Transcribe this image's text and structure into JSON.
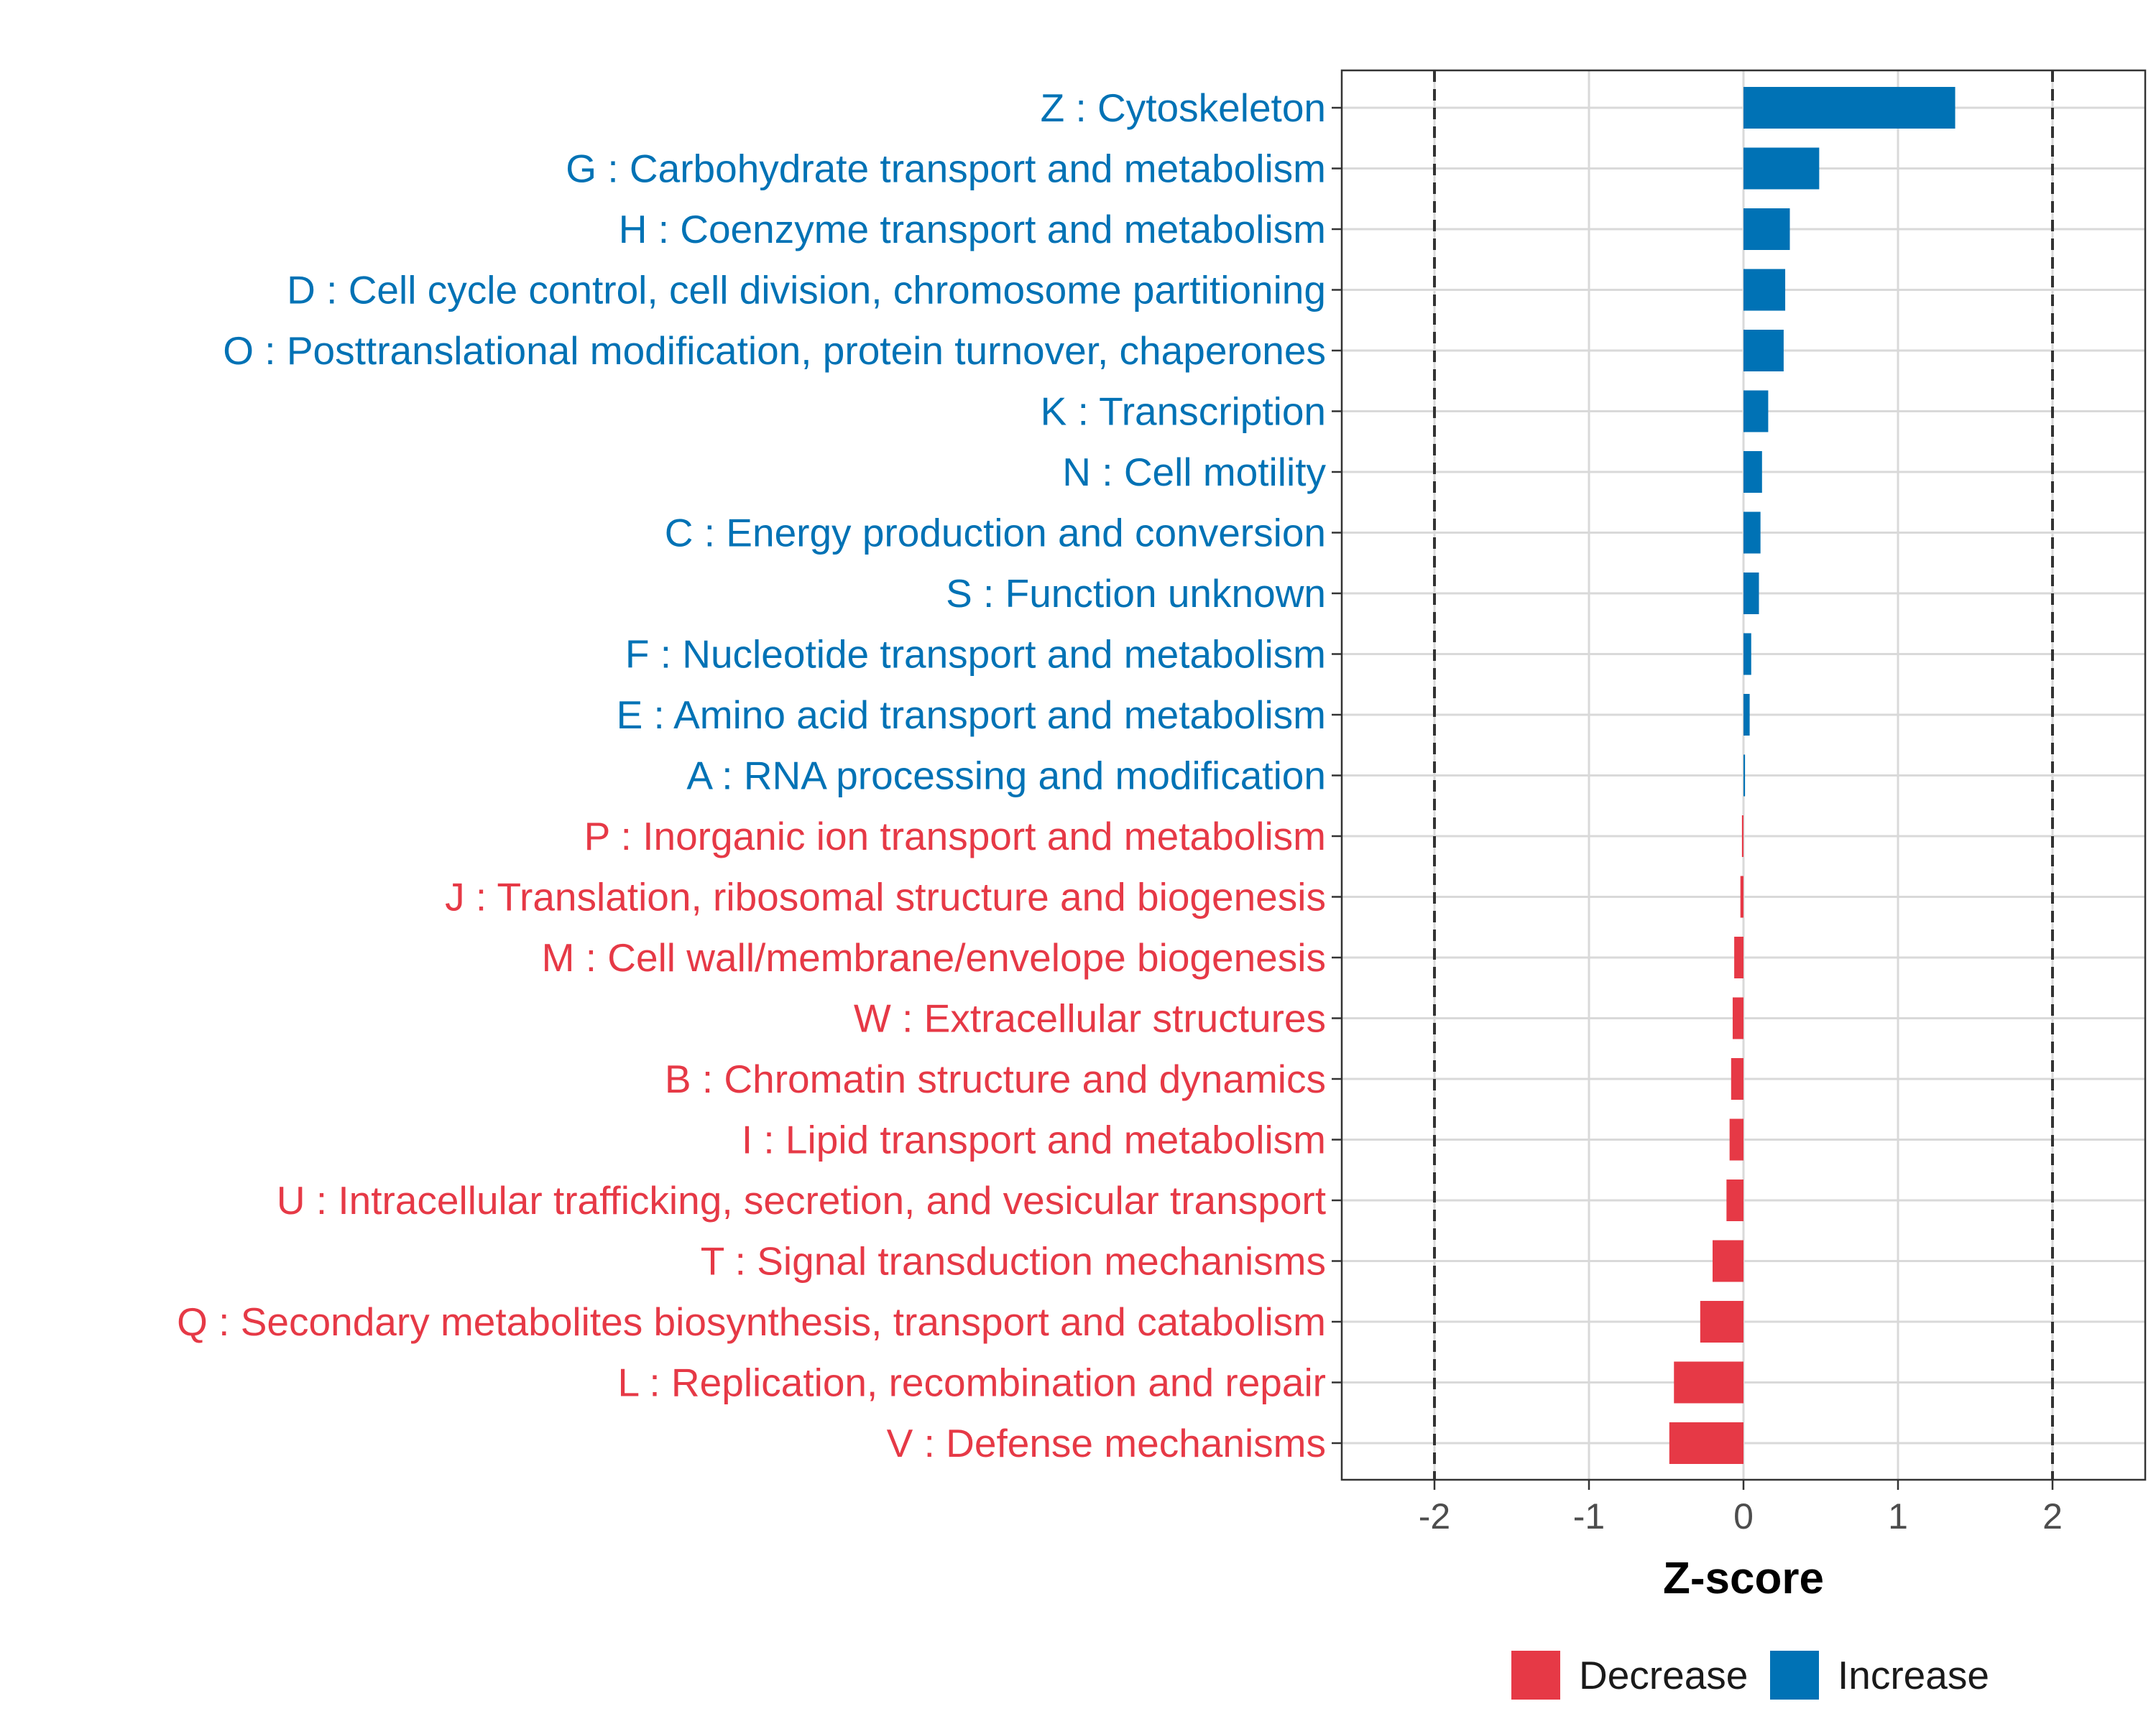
{
  "chart_data": {
    "type": "bar",
    "orientation": "horizontal",
    "xlabel": "Z-score",
    "xlim": [
      -2.6,
      2.6
    ],
    "xticks": [
      -2,
      -1,
      0,
      1,
      2
    ],
    "tick_labels": [
      "-2",
      "-1",
      "0",
      "1",
      "2"
    ],
    "reference_lines": [
      -2,
      2
    ],
    "grid": true,
    "colors": {
      "Increase": "#0072b5",
      "Decrease": "#e63946"
    },
    "categories": [
      "Z : Cytoskeleton",
      "G : Carbohydrate transport and metabolism",
      "H : Coenzyme transport and metabolism",
      "D : Cell cycle control, cell division, chromosome partitioning",
      "O : Posttranslational modification, protein turnover, chaperones",
      "K : Transcription",
      "N : Cell motility",
      "C : Energy production and conversion",
      "S : Function unknown",
      "F : Nucleotide transport and metabolism",
      "E : Amino acid transport and metabolism",
      "A : RNA processing and modification",
      "P : Inorganic ion transport and metabolism",
      "J : Translation, ribosomal structure and biogenesis",
      "M : Cell wall/membrane/envelope biogenesis",
      "W : Extracellular structures",
      "B : Chromatin structure and dynamics",
      "I : Lipid transport and metabolism",
      "U : Intracellular trafficking, secretion, and vesicular transport",
      "T : Signal transduction mechanisms",
      "Q : Secondary metabolites biosynthesis, transport and catabolism",
      "L : Replication, recombination and repair",
      "V : Defense mechanisms"
    ],
    "values": [
      1.37,
      0.49,
      0.3,
      0.27,
      0.26,
      0.16,
      0.12,
      0.11,
      0.1,
      0.05,
      0.04,
      0.01,
      -0.01,
      -0.02,
      -0.06,
      -0.07,
      -0.08,
      -0.09,
      -0.11,
      -0.2,
      -0.28,
      -0.45,
      -0.48
    ],
    "legend": {
      "position": "bottom",
      "entries": [
        {
          "name": "Decrease",
          "color": "#e63946"
        },
        {
          "name": "Increase",
          "color": "#0072b5"
        }
      ]
    }
  }
}
